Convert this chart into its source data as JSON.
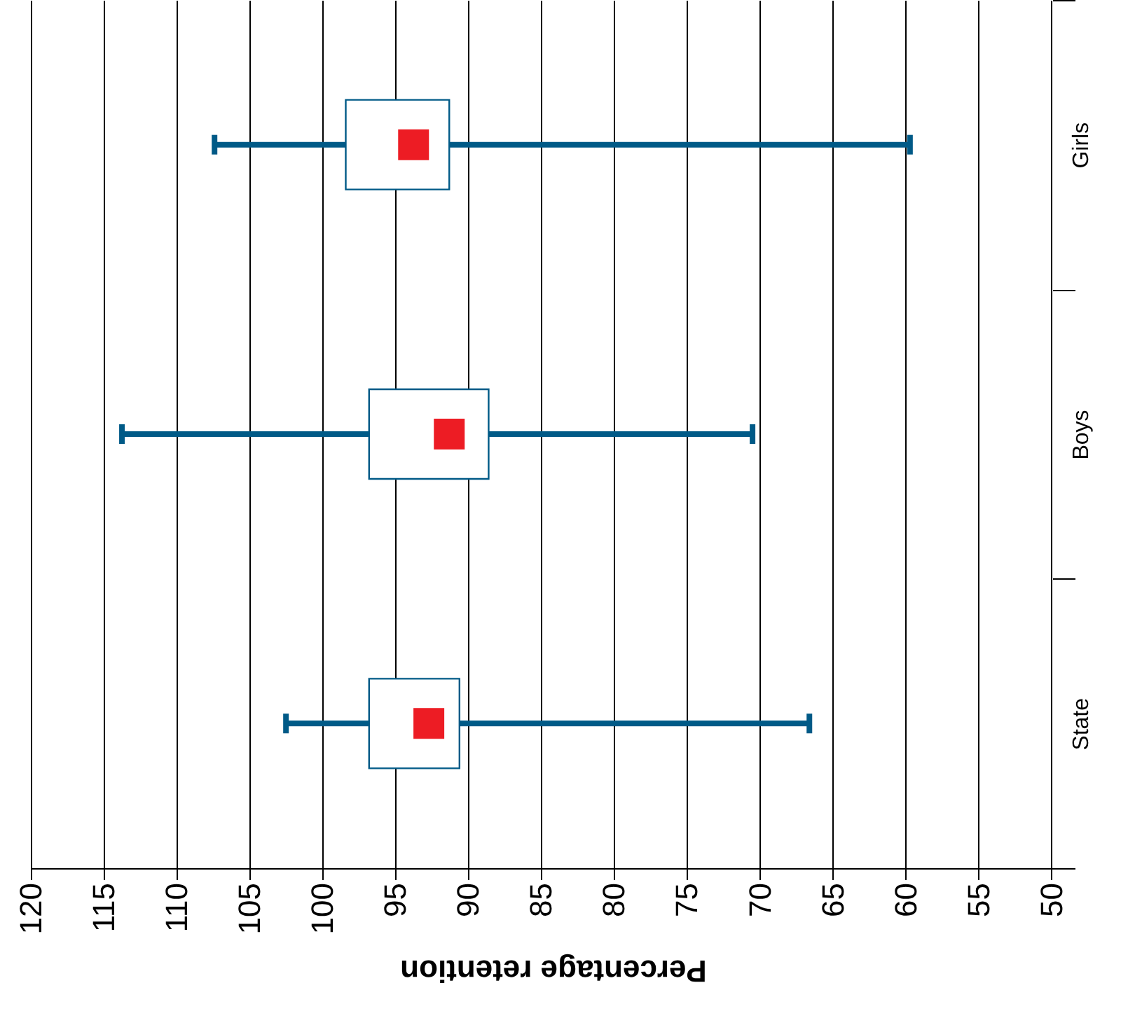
{
  "chart_data": {
    "type": "box",
    "orientation": "horizontal",
    "xlabel": "Percentage retention",
    "categories": [
      "Girls",
      "Boys",
      "State"
    ],
    "color": "#005a87",
    "boxes": [
      {
        "low": 59.7,
        "q1": 91.3,
        "median": 93.75,
        "q3": 98.4,
        "high": 107.4
      },
      {
        "low": 70.5,
        "q1": 88.6,
        "median": 91.3,
        "q3": 96.8,
        "high": 113.75
      },
      {
        "low": 66.6,
        "q1": 90.6,
        "median": 92.7,
        "q3": 96.8,
        "high": 102.5
      }
    ],
    "xlim": [
      120,
      48.4
    ],
    "xticks": [
      120,
      115,
      110,
      105,
      100,
      95,
      90,
      85,
      80,
      75,
      70,
      65,
      60,
      55,
      50
    ],
    "grid": "x"
  }
}
